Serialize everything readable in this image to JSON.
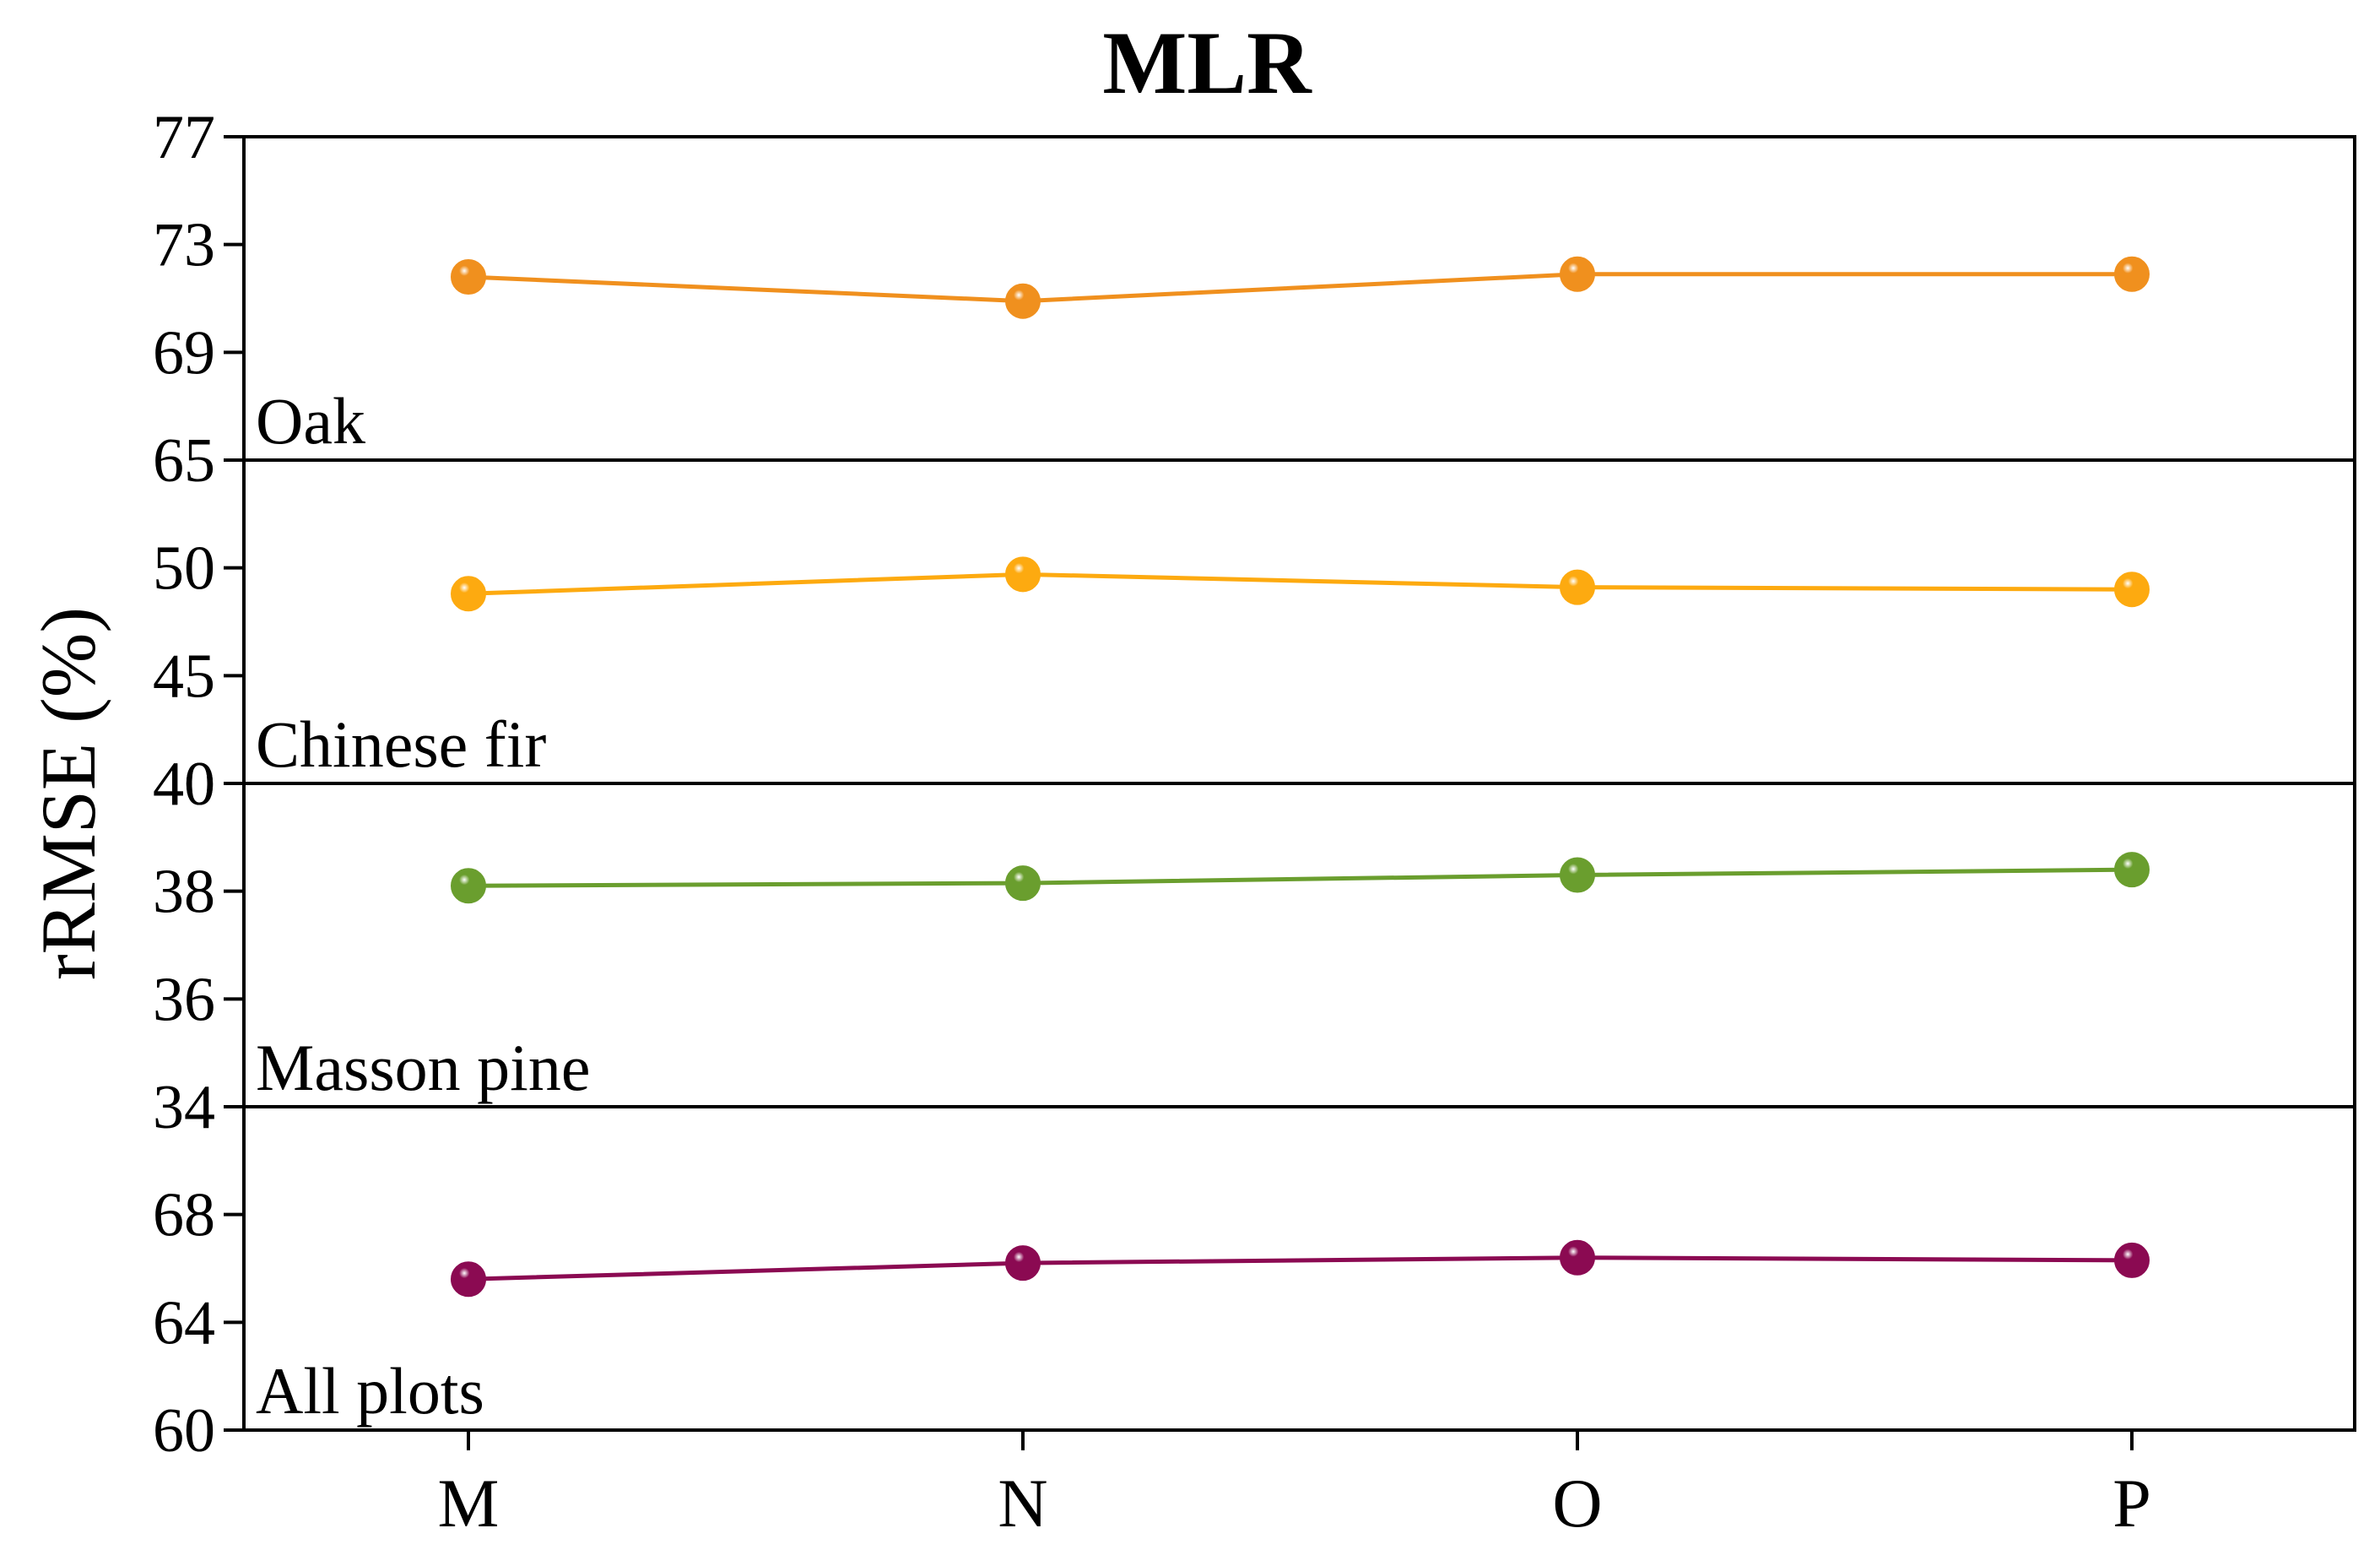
{
  "chart_data": {
    "type": "line",
    "title": "MLR",
    "ylabel": "rRMSE (%)",
    "xlabel": "",
    "categories": [
      "M",
      "N",
      "O",
      "P"
    ],
    "panels": [
      {
        "name": "Oak",
        "color": "#F0901E",
        "ylim": [
          65,
          77
        ],
        "yticks": [
          "77",
          "73",
          "69",
          "65"
        ],
        "values": [
          71.8,
          70.9,
          71.9,
          71.9
        ]
      },
      {
        "name": "Chinese fir",
        "color": "#FDAA10",
        "ylim": [
          40,
          55
        ],
        "yticks": [
          "50",
          "45",
          "40"
        ],
        "values": [
          48.8,
          49.7,
          49.1,
          49.0
        ]
      },
      {
        "name": "Masson pine",
        "color": "#6A9E2E",
        "ylim": [
          34,
          40
        ],
        "yticks": [
          "40",
          "38",
          "36",
          "34"
        ],
        "values": [
          38.1,
          38.15,
          38.3,
          38.4
        ]
      },
      {
        "name": "All plots",
        "color": "#8B0A52",
        "ylim": [
          60,
          72
        ],
        "yticks": [
          "68",
          "64",
          "60"
        ],
        "values": [
          65.6,
          66.2,
          66.4,
          66.3
        ]
      }
    ]
  }
}
